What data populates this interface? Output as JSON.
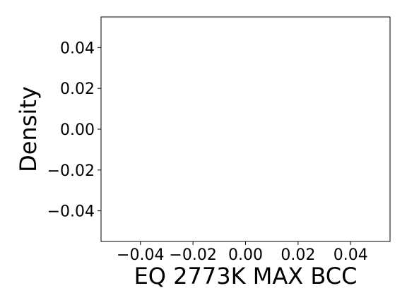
{
  "chart_data": {
    "type": "line",
    "title": "",
    "xlabel": "EQ 2773K MAX BCC",
    "ylabel": "Density",
    "series": [],
    "xlim": [
      -0.055,
      0.055
    ],
    "ylim": [
      -0.055,
      0.055
    ],
    "x_ticks": [
      -0.04,
      -0.02,
      0.0,
      0.02,
      0.04
    ],
    "y_ticks": [
      -0.04,
      -0.02,
      0.0,
      0.02,
      0.04
    ],
    "x_tick_labels": [
      "−0.04",
      "−0.02",
      "0.00",
      "0.02",
      "0.04"
    ],
    "y_tick_labels": [
      "−0.04",
      "−0.02",
      "0.00",
      "0.02",
      "0.04"
    ],
    "grid": false,
    "legend": "none"
  }
}
